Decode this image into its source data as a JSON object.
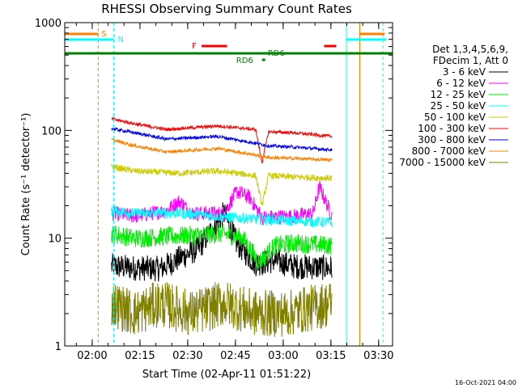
{
  "chart_data": {
    "type": "line",
    "title": "RHESSI Observing Summary Count Rates",
    "xlabel": "Start Time (02-Apr-11 01:51:22)",
    "ylabel": "Count Rate (s⁻¹ detector⁻¹)",
    "yscale": "log",
    "ylim": [
      1,
      1000
    ],
    "xlim_minutes": [
      0,
      103
    ],
    "x_ticks": [
      "02:00",
      "02:15",
      "02:30",
      "02:45",
      "03:00",
      "03:15",
      "03:30"
    ],
    "y_ticks": [
      "1",
      "10",
      "100",
      "1000"
    ],
    "legend": {
      "header": [
        "Det 1,3,4,5,6,9,",
        "FDecim 1, Att 0"
      ],
      "placement": "right"
    },
    "series": [
      {
        "name": "3 - 6 keV",
        "color": "#000000",
        "values": [
          [
            14.7,
            5.5
          ],
          [
            22,
            5.3
          ],
          [
            30,
            5.2
          ],
          [
            36,
            6.5
          ],
          [
            42,
            8
          ],
          [
            50,
            17
          ],
          [
            54,
            9
          ],
          [
            60,
            5.8
          ],
          [
            66,
            6.2
          ],
          [
            72,
            5.5
          ],
          [
            84,
            5.3
          ]
        ]
      },
      {
        "name": "6 - 12 keV",
        "color": "#ff00ff",
        "values": [
          [
            14.7,
            17
          ],
          [
            22,
            16
          ],
          [
            32,
            18
          ],
          [
            36,
            22
          ],
          [
            40,
            17
          ],
          [
            50,
            17
          ],
          [
            54,
            27
          ],
          [
            58,
            24
          ],
          [
            62,
            15.5
          ],
          [
            72,
            16
          ],
          [
            78,
            17
          ],
          [
            80,
            30
          ],
          [
            84,
            16
          ]
        ]
      },
      {
        "name": "12 - 25 keV",
        "color": "#00ee00",
        "values": [
          [
            14.7,
            11
          ],
          [
            22,
            10
          ],
          [
            36,
            10.5
          ],
          [
            50,
            11
          ],
          [
            56,
            10
          ],
          [
            61,
            6
          ],
          [
            66,
            8.5
          ],
          [
            72,
            9
          ],
          [
            84,
            8.5
          ]
        ]
      },
      {
        "name": "25 - 50 keV",
        "color": "#00ffff",
        "values": [
          [
            14.7,
            18
          ],
          [
            22,
            17
          ],
          [
            36,
            17
          ],
          [
            48,
            16
          ],
          [
            60,
            15
          ],
          [
            72,
            14.5
          ],
          [
            84,
            14
          ]
        ]
      },
      {
        "name": "50 - 100 keV",
        "color": "#cccc00",
        "values": [
          [
            14.7,
            46
          ],
          [
            22,
            42
          ],
          [
            36,
            40
          ],
          [
            48,
            42
          ],
          [
            60,
            38
          ],
          [
            62,
            20
          ],
          [
            64,
            38
          ],
          [
            72,
            37
          ],
          [
            84,
            36
          ]
        ]
      },
      {
        "name": "100 - 300 keV",
        "color": "#ff0000",
        "values": [
          [
            14.7,
            128
          ],
          [
            22,
            115
          ],
          [
            32,
            102
          ],
          [
            48,
            110
          ],
          [
            60,
            102
          ],
          [
            62,
            50
          ],
          [
            64,
            97
          ],
          [
            72,
            95
          ],
          [
            84,
            88
          ]
        ]
      },
      {
        "name": "300 - 800 keV",
        "color": "#0000ff",
        "values": [
          [
            14.7,
            104
          ],
          [
            22,
            95
          ],
          [
            32,
            83
          ],
          [
            48,
            88
          ],
          [
            60,
            76
          ],
          [
            64,
            72
          ],
          [
            72,
            70
          ],
          [
            84,
            66
          ]
        ]
      },
      {
        "name": "800 - 7000 keV",
        "color": "#ff8000",
        "values": [
          [
            14.7,
            82
          ],
          [
            22,
            72
          ],
          [
            32,
            63
          ],
          [
            48,
            68
          ],
          [
            60,
            59
          ],
          [
            64,
            56
          ],
          [
            72,
            55
          ],
          [
            84,
            53
          ]
        ]
      },
      {
        "name": "7000 - 15000 keV",
        "color": "#808000",
        "values": [
          [
            14.7,
            2.5
          ],
          [
            22,
            2
          ],
          [
            30,
            2.5
          ],
          [
            40,
            2
          ],
          [
            50,
            2.5
          ],
          [
            60,
            2
          ],
          [
            70,
            2
          ],
          [
            84,
            2.5
          ]
        ]
      }
    ],
    "annotations": {
      "S": {
        "label": "S",
        "color": "#ff8000"
      },
      "N": {
        "label": "N",
        "color": "#00ffff"
      },
      "F": {
        "label": "F",
        "color": "#ff0000"
      },
      "RD6": {
        "label": "RD6",
        "color": "#008000"
      },
      "footer_date": "16-Oct-2021 04:00"
    }
  }
}
